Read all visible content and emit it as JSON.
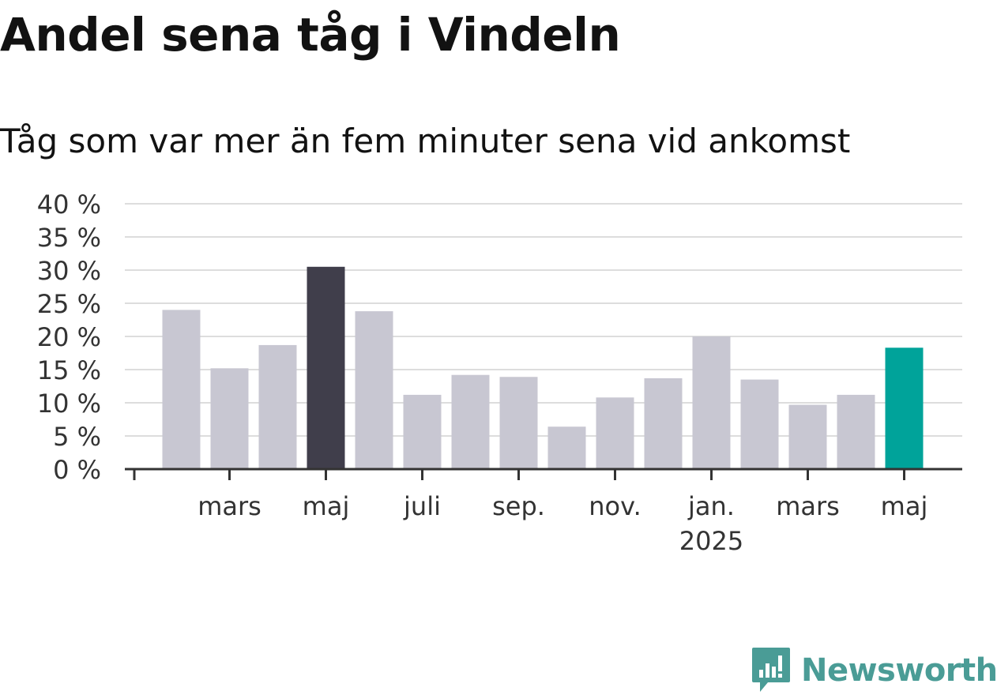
{
  "chart_data": {
    "type": "bar",
    "title": "Andel sena tåg i Vindeln",
    "subtitle": "Tåg som var mer än fem minuter sena vid ankomst",
    "xlabel": "",
    "ylabel": "",
    "categories": [
      "2024-02",
      "2024-03",
      "2024-04",
      "2024-05",
      "2024-06",
      "2024-07",
      "2024-08",
      "2024-09",
      "2024-10",
      "2024-11",
      "2024-12",
      "2025-01",
      "2025-02",
      "2025-03",
      "2025-04",
      "2025-05"
    ],
    "values": [
      24,
      15.2,
      18.7,
      30.5,
      23.8,
      11.2,
      14.2,
      13.9,
      6.4,
      10.8,
      13.7,
      20,
      13.5,
      9.7,
      11.2,
      18.3
    ],
    "ylim": [
      0,
      40
    ],
    "yticks": [
      0,
      5,
      10,
      15,
      20,
      25,
      30,
      35,
      40
    ],
    "ytick_labels": [
      "0 %",
      "5 %",
      "10 %",
      "15 %",
      "20 %",
      "25 %",
      "30 %",
      "35 %",
      "40 %"
    ],
    "xtick_labels": [
      {
        "at": "2024-03",
        "lines": [
          "mars"
        ]
      },
      {
        "at": "2024-05",
        "lines": [
          "maj"
        ]
      },
      {
        "at": "2024-07",
        "lines": [
          "juli"
        ]
      },
      {
        "at": "2024-09",
        "lines": [
          "sep."
        ]
      },
      {
        "at": "2024-11",
        "lines": [
          "nov."
        ]
      },
      {
        "at": "2025-01",
        "lines": [
          "jan.",
          "2025"
        ]
      },
      {
        "at": "2025-03",
        "lines": [
          "mars"
        ]
      },
      {
        "at": "2025-05",
        "lines": [
          "maj"
        ]
      }
    ],
    "grid": true,
    "legend": "none",
    "colors": {
      "default": "#c8c7d2",
      "highlight_max": "#403e4b",
      "highlight_latest": "#00a39a"
    },
    "highlight": {
      "max": "2024-05",
      "latest": "2025-05"
    }
  },
  "brand": {
    "name": "Newsworthy",
    "icon": "newsworthy-logo-icon",
    "color": "#4a9c96"
  }
}
